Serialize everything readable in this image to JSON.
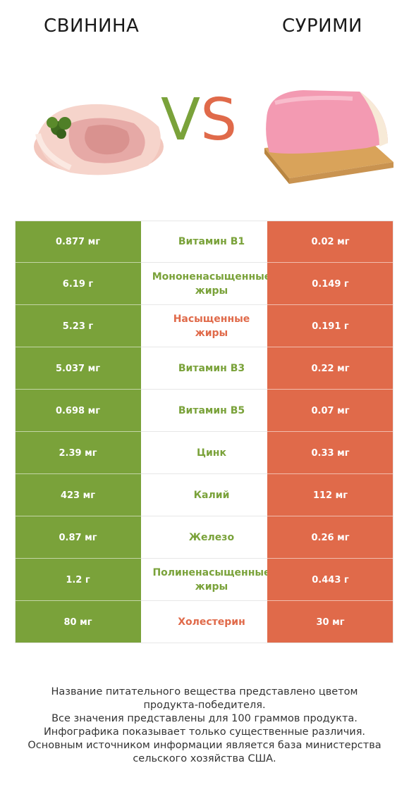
{
  "left_title": "СВИНИНА",
  "right_title": "СУРИМИ",
  "vs_v": "V",
  "vs_s": "S",
  "colors": {
    "green": "#7aa23a",
    "red": "#e06a4a"
  },
  "rows": [
    {
      "left": "0.877 мг",
      "name": "Витамин B1",
      "right": "0.02 мг",
      "winner": "green"
    },
    {
      "left": "6.19 г",
      "name": "Мононенасыщенные\nжиры",
      "right": "0.149 г",
      "winner": "green"
    },
    {
      "left": "5.23 г",
      "name": "Насыщенные\nжиры",
      "right": "0.191 г",
      "winner": "red"
    },
    {
      "left": "5.037 мг",
      "name": "Витамин B3",
      "right": "0.22 мг",
      "winner": "green"
    },
    {
      "left": "0.698 мг",
      "name": "Витамин B5",
      "right": "0.07 мг",
      "winner": "green"
    },
    {
      "left": "2.39 мг",
      "name": "Цинк",
      "right": "0.33 мг",
      "winner": "green"
    },
    {
      "left": "423 мг",
      "name": "Калий",
      "right": "112 мг",
      "winner": "green"
    },
    {
      "left": "0.87 мг",
      "name": "Железо",
      "right": "0.26 мг",
      "winner": "green"
    },
    {
      "left": "1.2 г",
      "name": "Полиненасыщенные\nжиры",
      "right": "0.443 г",
      "winner": "green"
    },
    {
      "left": "80 мг",
      "name": "Холестерин",
      "right": "30 мг",
      "winner": "red"
    }
  ],
  "footer": [
    "Название питательного вещества представлено цветом",
    "продукта-победителя.",
    "Все значения представлены для 100 граммов продукта.",
    "Инфографика показывает только существенные различия.",
    "Основным источником информации является база министерства",
    "сельского хозяйства США."
  ]
}
